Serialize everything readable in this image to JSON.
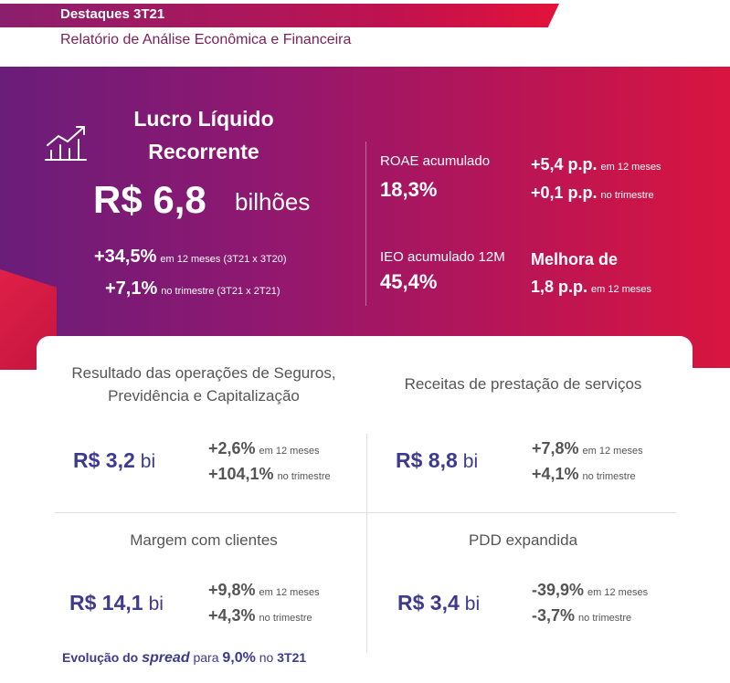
{
  "header": {
    "title": "Destaques 3T21",
    "subtitle": "Relatório de Análise Econômica e Financeira"
  },
  "hero": {
    "icon": "growth-chart-icon",
    "label_line1": "Lucro Líquido",
    "label_line2": "Recorrente",
    "value": "R$ 6,8",
    "unit": "bilhões",
    "delta1_value": "+34,5%",
    "delta1_suffix": "em 12 meses (3T21 x 3T20)",
    "delta2_value": "+7,1%",
    "delta2_suffix": "no trimestre (3T21 x 2T21)",
    "roae_label": "ROAE acumulado",
    "roae_value": "18,3%",
    "roae_delta1_value": "+5,4 p.p.",
    "roae_delta1_suffix": "em 12 meses",
    "roae_delta2_value": "+0,1 p.p.",
    "roae_delta2_suffix": "no trimestre",
    "ieo_label": "IEO acumulado 12M",
    "ieo_value": "45,4%",
    "ieo_delta_line1": "Melhora de",
    "ieo_delta_value": "1,8 p.p.",
    "ieo_delta_suffix": "em 12 meses"
  },
  "sections": {
    "seguros": {
      "title_line1": "Resultado das operações de Seguros,",
      "title_line2": "Previdência e Capitalização",
      "value": "R$ 3,2",
      "unit": "bi",
      "delta1_value": "+2,6%",
      "delta1_suffix": "em 12 meses",
      "delta2_value": "+104,1%",
      "delta2_suffix": "no trimestre"
    },
    "receitas": {
      "title": "Receitas de prestação de serviços",
      "value": "R$ 8,8",
      "unit": "bi",
      "delta1_value": "+7,8%",
      "delta1_suffix": "em 12 meses",
      "delta2_value": "+4,1%",
      "delta2_suffix": "no trimestre"
    },
    "margem": {
      "title": "Margem com clientes",
      "value": "R$ 14,1",
      "unit": "bi",
      "delta1_value": "+9,8%",
      "delta1_suffix": "em 12 meses",
      "delta2_value": "+4,3%",
      "delta2_suffix": "no trimestre"
    },
    "pdd": {
      "title": "PDD expandida",
      "value": "R$ 3,4",
      "unit": "bi",
      "delta1_value": "-39,9%",
      "delta1_suffix": "em 12 meses",
      "delta2_value": "-3,7%",
      "delta2_suffix": "no trimestre"
    }
  },
  "footer": {
    "part1": "Evolução do",
    "spread": "spread",
    "part2": "para",
    "value": "9,0%",
    "part3": "no",
    "period": "3T21"
  }
}
